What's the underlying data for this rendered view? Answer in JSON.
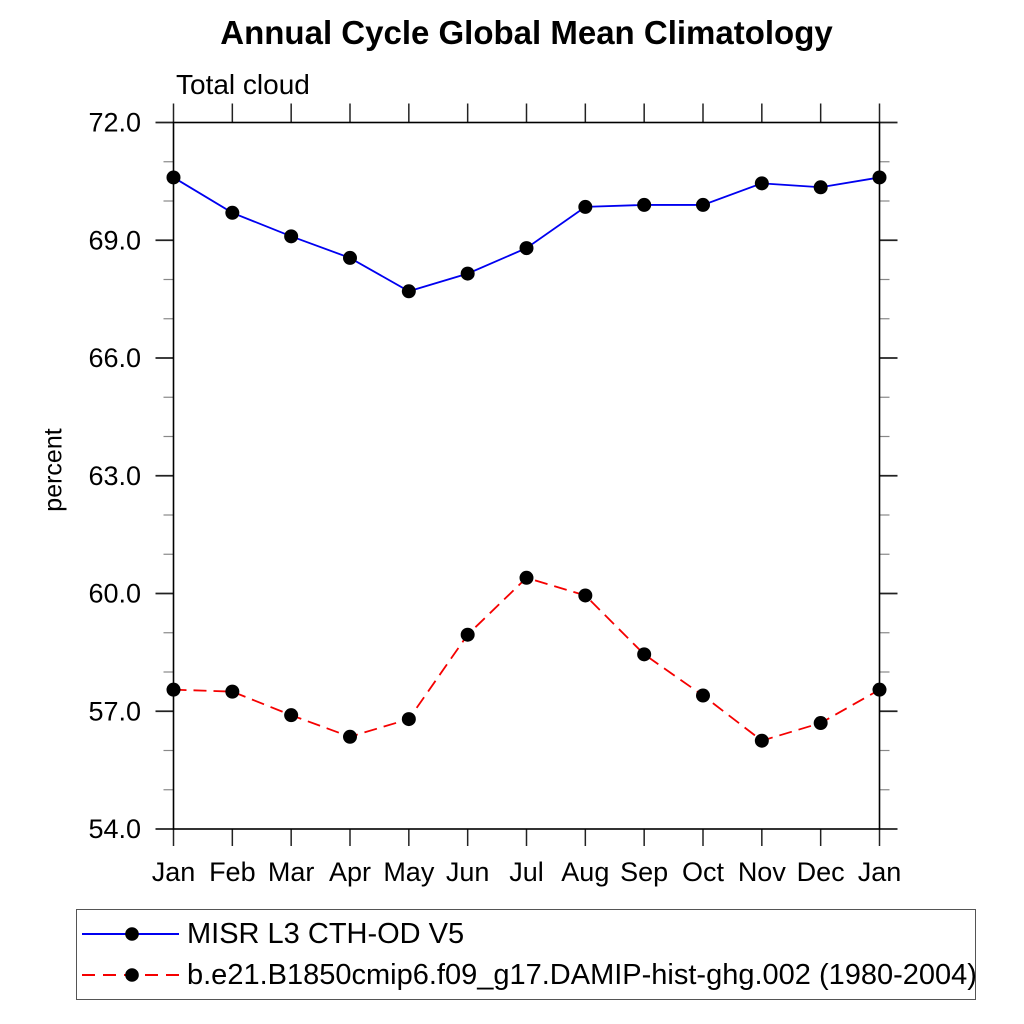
{
  "title": "Annual Cycle Global Mean Climatology",
  "subtitle": "Total cloud",
  "ylabel": "percent",
  "chart_data": {
    "type": "line",
    "categories": [
      "Jan",
      "Feb",
      "Mar",
      "Apr",
      "May",
      "Jun",
      "Jul",
      "Aug",
      "Sep",
      "Oct",
      "Nov",
      "Dec",
      "Jan"
    ],
    "series": [
      {
        "name": "MISR L3 CTH-OD V5",
        "color": "#0000f0",
        "line_style": "solid",
        "marker": "filled-circle",
        "marker_color": "#000000",
        "values": [
          70.6,
          69.7,
          69.1,
          68.55,
          67.7,
          68.15,
          68.8,
          69.85,
          69.9,
          69.9,
          70.45,
          70.35,
          70.6
        ]
      },
      {
        "name": "b.e21.B1850cmip6.f09_g17.DAMIP-hist-ghg.002 (1980-2004)",
        "color": "#f50000",
        "line_style": "dashed",
        "marker": "filled-circle",
        "marker_color": "#000000",
        "values": [
          57.55,
          57.5,
          56.9,
          56.35,
          56.8,
          58.95,
          60.4,
          59.95,
          58.45,
          57.4,
          56.25,
          56.7,
          57.55
        ]
      }
    ],
    "xlabel": "",
    "ylim": [
      54,
      72
    ],
    "ytick_major": [
      54,
      57,
      60,
      63,
      66,
      69,
      72
    ],
    "ytick_labels": [
      "54.0",
      "57.0",
      "60.0",
      "63.0",
      "66.0",
      "69.0",
      "72.0"
    ],
    "ytick_minor_step": 1,
    "grid": false,
    "legend_position": "bottom"
  },
  "axis_color": "#000000"
}
